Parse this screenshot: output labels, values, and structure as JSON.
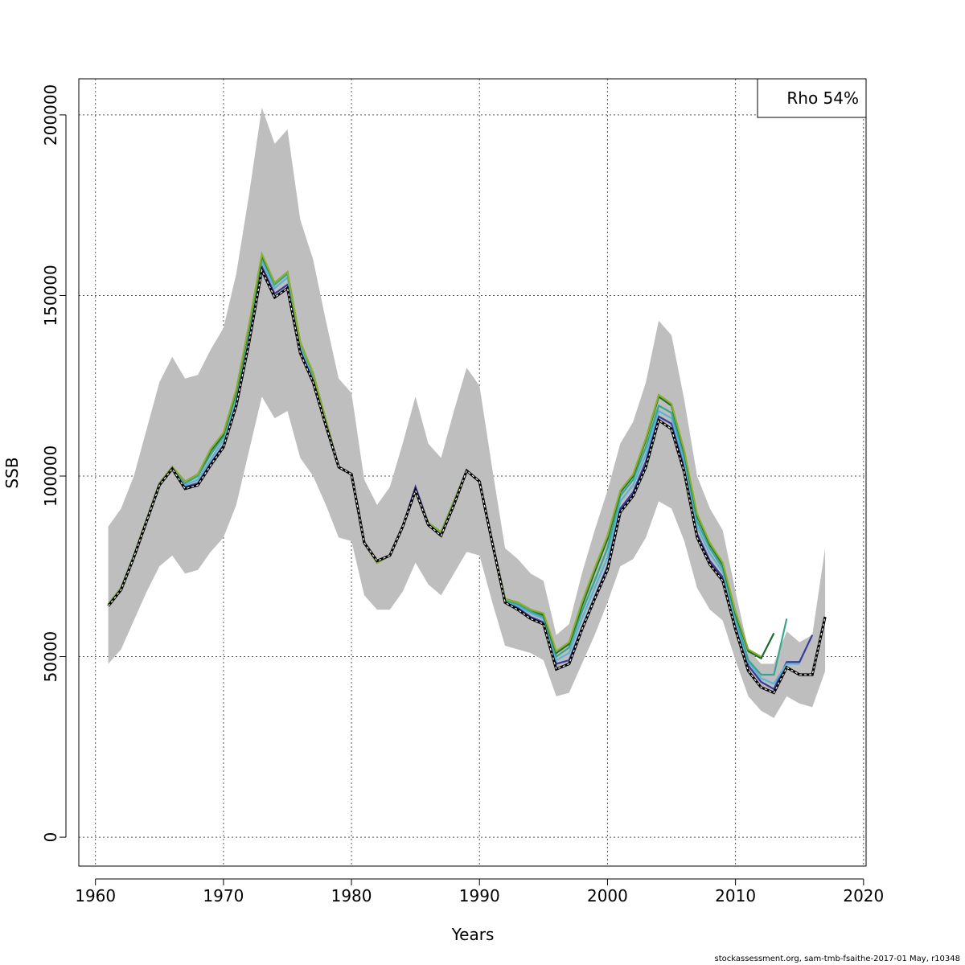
{
  "chart_data": {
    "type": "line",
    "xlabel": "Years",
    "ylabel": "SSB",
    "xlim": [
      1958.7,
      2020.2
    ],
    "ylim": [
      -8000,
      210000
    ],
    "x_ticks": [
      1960,
      1970,
      1980,
      1990,
      2000,
      2010,
      2020
    ],
    "x_tick_labels": [
      "1960",
      "1970",
      "1980",
      "1990",
      "2000",
      "2010",
      "2020"
    ],
    "y_ticks": [
      0,
      50000,
      100000,
      150000,
      200000
    ],
    "y_tick_labels": [
      "0",
      "50000",
      "100000",
      "150000",
      "200000"
    ],
    "grid": true,
    "legend": {
      "position": "top-right",
      "text": "Rho 54%"
    },
    "confidence_band": {
      "x": [
        1961,
        1962,
        1963,
        1964,
        1965,
        1966,
        1967,
        1968,
        1969,
        1970,
        1971,
        1972,
        1973,
        1974,
        1975,
        1976,
        1977,
        1978,
        1979,
        1980,
        1981,
        1982,
        1983,
        1984,
        1985,
        1986,
        1987,
        1988,
        1989,
        1990,
        1991,
        1992,
        1993,
        1994,
        1995,
        1996,
        1997,
        1998,
        1999,
        2000,
        2001,
        2002,
        2003,
        2004,
        2005,
        2006,
        2007,
        2008,
        2009,
        2010,
        2011,
        2012,
        2013,
        2014,
        2015,
        2016,
        2017
      ],
      "low": [
        48000,
        52000,
        60000,
        68000,
        75000,
        78000,
        73000,
        74000,
        79000,
        83000,
        92000,
        107000,
        122000,
        116000,
        118000,
        105000,
        100000,
        92000,
        83000,
        82000,
        67000,
        63000,
        63000,
        68000,
        76000,
        70000,
        67000,
        73000,
        79000,
        78000,
        65000,
        53000,
        52000,
        51000,
        49000,
        39000,
        40000,
        48000,
        56000,
        65000,
        75000,
        77000,
        83000,
        93000,
        91000,
        82000,
        69000,
        63000,
        60000,
        49000,
        39000,
        35000,
        33000,
        39000,
        37000,
        36000,
        46000
      ],
      "high": [
        86000,
        91000,
        100000,
        113000,
        126000,
        133000,
        127000,
        128000,
        135000,
        141000,
        156000,
        178000,
        202000,
        192000,
        196000,
        171000,
        160000,
        143000,
        127000,
        123000,
        99000,
        92000,
        97000,
        109000,
        122000,
        109000,
        105000,
        118000,
        130000,
        125000,
        102000,
        80000,
        77000,
        73000,
        71000,
        56000,
        59000,
        73000,
        85000,
        96000,
        109000,
        115000,
        126000,
        143000,
        139000,
        121000,
        100000,
        91000,
        85000,
        68000,
        52000,
        48000,
        48000,
        57000,
        54000,
        56000,
        80000
      ]
    },
    "series": [
      {
        "color": "#000000",
        "dashed": true,
        "x": [
          1961,
          1962,
          1963,
          1964,
          1965,
          1966,
          1967,
          1968,
          1969,
          1970,
          1971,
          1972,
          1973,
          1974,
          1975,
          1976,
          1977,
          1978,
          1979,
          1980,
          1981,
          1982,
          1983,
          1984,
          1985,
          1986,
          1987,
          1988,
          1989,
          1990,
          1991,
          1992,
          1993,
          1994,
          1995,
          1996,
          1997,
          1998,
          1999,
          2000,
          2001,
          2002,
          2003,
          2004,
          2005,
          2006,
          2007,
          2008,
          2009,
          2010,
          2011,
          2012,
          2013,
          2014,
          2015,
          2016,
          2017
        ],
        "values": [
          64000,
          68500,
          77500,
          87500,
          97500,
          102000,
          96500,
          97500,
          103000,
          108000,
          119500,
          137000,
          157000,
          149500,
          152000,
          134000,
          126000,
          114000,
          102500,
          100500,
          81500,
          76500,
          78000,
          86000,
          96000,
          86500,
          83500,
          92000,
          101500,
          98500,
          81500,
          65000,
          63000,
          60500,
          59000,
          46500,
          48000,
          57500,
          66000,
          74000,
          90000,
          94500,
          102500,
          115500,
          113000,
          101000,
          83000,
          75500,
          71000,
          57500,
          46000,
          41500,
          40000,
          47000,
          45000,
          45000,
          61000
        ]
      },
      {
        "color": "#3a3a9a",
        "x": [
          1961,
          1962,
          1963,
          1964,
          1965,
          1966,
          1967,
          1968,
          1969,
          1970,
          1971,
          1972,
          1973,
          1974,
          1975,
          1976,
          1977,
          1978,
          1979,
          1980,
          1981,
          1982,
          1983,
          1984,
          1985,
          1986,
          1987,
          1988,
          1989,
          1990,
          1991,
          1992,
          1993,
          1994,
          1995,
          1996,
          1997,
          1998,
          1999,
          2000,
          2001,
          2002,
          2003,
          2004,
          2005,
          2006,
          2007,
          2008,
          2009,
          2010,
          2011,
          2012,
          2013,
          2014,
          2015,
          2016
        ],
        "values": [
          64000,
          68500,
          77500,
          87500,
          97500,
          102000,
          97000,
          98000,
          103500,
          108500,
          120000,
          138000,
          158000,
          150500,
          153000,
          135000,
          126500,
          114500,
          102500,
          100500,
          81500,
          76500,
          78000,
          86000,
          97000,
          87000,
          84000,
          92500,
          101500,
          98500,
          81500,
          65000,
          63500,
          61000,
          59500,
          48000,
          49000,
          58000,
          66500,
          75000,
          91000,
          95500,
          104000,
          116500,
          114500,
          102500,
          84000,
          76500,
          72000,
          58500,
          47500,
          43000,
          41000,
          48500,
          48500,
          56000
        ]
      },
      {
        "color": "#5ab4d6",
        "x": [
          1961,
          1962,
          1963,
          1964,
          1965,
          1966,
          1967,
          1968,
          1969,
          1970,
          1971,
          1972,
          1973,
          1974,
          1975,
          1976,
          1977,
          1978,
          1979,
          1980,
          1981,
          1982,
          1983,
          1984,
          1985,
          1986,
          1987,
          1988,
          1989,
          1990,
          1991,
          1992,
          1993,
          1994,
          1995,
          1996,
          1997,
          1998,
          1999,
          2000,
          2001,
          2002,
          2003,
          2004,
          2005,
          2006,
          2007,
          2008,
          2009,
          2010,
          2011,
          2012,
          2013,
          2014,
          2015
        ],
        "values": [
          64500,
          69000,
          78000,
          88000,
          98000,
          102500,
          97500,
          99000,
          104500,
          110000,
          121500,
          140000,
          159500,
          152000,
          155000,
          136000,
          127500,
          115000,
          102500,
          100500,
          81500,
          76000,
          78000,
          86000,
          96000,
          87000,
          84000,
          92500,
          101500,
          98500,
          81500,
          65500,
          64000,
          62000,
          60500,
          49000,
          51000,
          60500,
          69000,
          77500,
          93000,
          97500,
          106000,
          118000,
          116000,
          104000,
          86000,
          78500,
          73500,
          59500,
          48500,
          44000,
          42500,
          48000,
          48000
        ]
      },
      {
        "color": "#3aa58f",
        "x": [
          1961,
          1962,
          1963,
          1964,
          1965,
          1966,
          1967,
          1968,
          1969,
          1970,
          1971,
          1972,
          1973,
          1974,
          1975,
          1976,
          1977,
          1978,
          1979,
          1980,
          1981,
          1982,
          1983,
          1984,
          1985,
          1986,
          1987,
          1988,
          1989,
          1990,
          1991,
          1992,
          1993,
          1994,
          1995,
          1996,
          1997,
          1998,
          1999,
          2000,
          2001,
          2002,
          2003,
          2004,
          2005,
          2006,
          2007,
          2008,
          2009,
          2010,
          2011,
          2012,
          2013,
          2014
        ],
        "values": [
          64500,
          69000,
          78000,
          88000,
          98000,
          102500,
          98000,
          100000,
          106000,
          111000,
          123000,
          141000,
          160500,
          153000,
          156000,
          137000,
          128000,
          115500,
          102500,
          100500,
          81500,
          76000,
          78000,
          86000,
          96000,
          87000,
          84500,
          93000,
          101500,
          98500,
          81500,
          65500,
          64500,
          62500,
          61000,
          50000,
          52500,
          62500,
          71000,
          80000,
          94500,
          99000,
          108000,
          119500,
          117500,
          105500,
          87500,
          80000,
          74500,
          61000,
          49000,
          45000,
          45000,
          60500
        ]
      },
      {
        "color": "#1a6b2a",
        "x": [
          1961,
          1962,
          1963,
          1964,
          1965,
          1966,
          1967,
          1968,
          1969,
          1970,
          1971,
          1972,
          1973,
          1974,
          1975,
          1976,
          1977,
          1978,
          1979,
          1980,
          1981,
          1982,
          1983,
          1984,
          1985,
          1986,
          1987,
          1988,
          1989,
          1990,
          1991,
          1992,
          1993,
          1994,
          1995,
          1996,
          1997,
          1998,
          1999,
          2000,
          2001,
          2002,
          2003,
          2004,
          2005,
          2006,
          2007,
          2008,
          2009,
          2010,
          2011,
          2012,
          2013
        ],
        "values": [
          64500,
          69000,
          78000,
          88000,
          98000,
          102500,
          98500,
          100500,
          107000,
          111500,
          123500,
          141500,
          161000,
          153500,
          156500,
          137000,
          128500,
          115500,
          102500,
          100500,
          81500,
          76000,
          78000,
          86000,
          96000,
          87000,
          84500,
          93000,
          101500,
          98500,
          81500,
          66000,
          65000,
          63000,
          61500,
          51000,
          53500,
          64000,
          73500,
          82500,
          95500,
          100000,
          110000,
          122000,
          119500,
          106500,
          89000,
          81000,
          75500,
          62000,
          51500,
          49500,
          56500
        ]
      },
      {
        "color": "#8ab030",
        "x": [
          1961,
          1962,
          1963,
          1964,
          1965,
          1966,
          1967,
          1968,
          1969,
          1970,
          1971,
          1972,
          1973,
          1974,
          1975,
          1976,
          1977,
          1978,
          1979,
          1980,
          1981,
          1982,
          1983,
          1984,
          1985,
          1986,
          1987,
          1988,
          1989,
          1990,
          1991,
          1992,
          1993,
          1994,
          1995,
          1996,
          1997,
          1998,
          1999,
          2000,
          2001,
          2002,
          2003,
          2004,
          2005,
          2006,
          2007,
          2008,
          2009,
          2010,
          2011,
          2012
        ],
        "values": [
          64500,
          69000,
          78000,
          88000,
          98000,
          102500,
          98500,
          100500,
          107500,
          112000,
          124000,
          142000,
          161500,
          153500,
          156500,
          137000,
          128500,
          115500,
          102500,
          100500,
          81500,
          76000,
          78000,
          86000,
          96000,
          87000,
          84500,
          93000,
          101500,
          98500,
          81500,
          66000,
          65000,
          63000,
          62000,
          51500,
          54000,
          65000,
          74500,
          83500,
          96000,
          100500,
          110500,
          122500,
          120000,
          107000,
          89500,
          81500,
          76000,
          62500,
          52000,
          50000
        ]
      }
    ]
  },
  "footer": {
    "text": "stockassessment.org, sam-tmb-fsaithe-2017-01  May, r10348"
  }
}
